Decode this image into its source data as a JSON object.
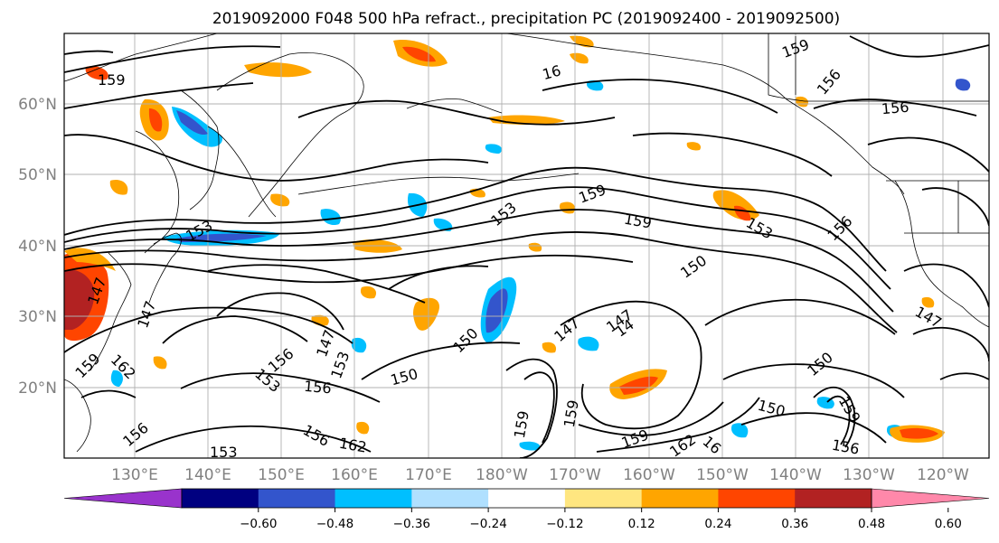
{
  "title": "2019092000 F048 500 hPa refract., precipitation PC (2019092400 - 2019092500)",
  "lat_labels": [
    "60°N",
    "50°N",
    "40°N",
    "30°N",
    "20°N"
  ],
  "lon_labels": [
    "130°E",
    "140°E",
    "150°E",
    "160°E",
    "170°E",
    "180°W",
    "170°W",
    "160°W",
    "150°W",
    "140°W",
    "130°W",
    "120°W"
  ],
  "colorbar": {
    "tick_labels": [
      "-0.60",
      "-0.48",
      "-0.36",
      "-0.24",
      "-0.12",
      "0.12",
      "0.24",
      "0.36",
      "0.48",
      "0.60"
    ],
    "colors": [
      "#9933cc",
      "#000080",
      "#3355cc",
      "#00bfff",
      "#b0e0ff",
      "#ffffff",
      "#ffe680",
      "#ffa500",
      "#ff4500",
      "#b22222",
      "#ff88aa"
    ]
  },
  "contour_labels": [
    "159",
    "153",
    "159",
    "159",
    "150",
    "156",
    "153",
    "159",
    "153",
    "147",
    "150",
    "156",
    "153",
    "156",
    "147",
    "153",
    "150",
    "156",
    "147",
    "150",
    "150",
    "147",
    "14",
    "159",
    "162",
    "16",
    "147",
    "159",
    "156",
    "162",
    "162",
    "147",
    "156",
    "159",
    "156",
    "156",
    "153",
    "159",
    "16",
    "159"
  ],
  "colors": {
    "contour": "#000000",
    "grid": "#b0b0b0",
    "coast": "#000000"
  }
}
